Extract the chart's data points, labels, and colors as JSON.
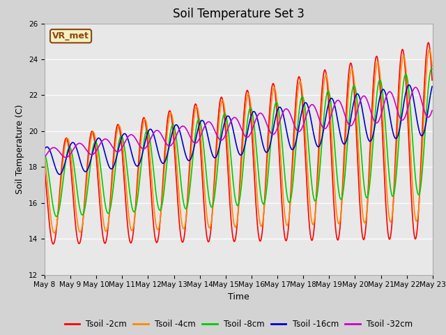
{
  "title": "Soil Temperature Set 3",
  "xlabel": "Time",
  "ylabel": "Soil Temperature (C)",
  "ylim": [
    12,
    26
  ],
  "series": [
    {
      "label": "Tsoil -2cm",
      "color": "#ff0000",
      "lw": 1.2
    },
    {
      "label": "Tsoil -4cm",
      "color": "#ff8800",
      "lw": 1.2
    },
    {
      "label": "Tsoil -8cm",
      "color": "#00cc00",
      "lw": 1.2
    },
    {
      "label": "Tsoil -16cm",
      "color": "#0000cc",
      "lw": 1.2
    },
    {
      "label": "Tsoil -32cm",
      "color": "#cc00cc",
      "lw": 1.2
    }
  ],
  "x_tick_labels": [
    "May 8",
    "May 9",
    "May 10",
    "May 11",
    "May 12",
    "May 13",
    "May 14",
    "May 15",
    "May 16",
    "May 17",
    "May 18",
    "May 19",
    "May 20",
    "May 21",
    "May 22",
    "May 23"
  ],
  "annotation_text": "VR_met",
  "bg_color": "#d3d3d3",
  "plot_bg_color": "#e8e8e8",
  "title_fontsize": 12,
  "axis_fontsize": 9,
  "tick_fontsize": 7.5,
  "legend_fontsize": 8.5
}
